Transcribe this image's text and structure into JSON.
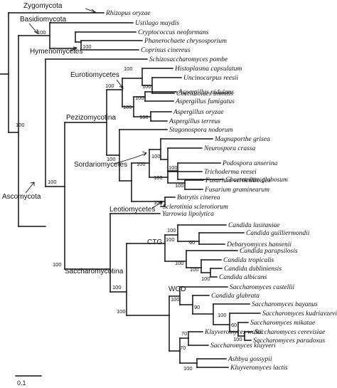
{
  "taxa": [
    "Rhizopus oryzae",
    "Ustilago maydis",
    "Cryptococcus neoformans",
    "Phanerochaete chrysosporium",
    "Coprinus cinereus",
    "Schizosaccharomyces pombe",
    "Histoplasma capsulatum",
    "Uncinocarpus reesii",
    "Coccidioides immitis",
    "Aspergillus nidulans",
    "Aspergillus fumigatus",
    "Aspergillus oryzae",
    "Aspergillus terreus",
    "Stagonospora nodorum",
    "Magnaporthe grisea",
    "Neurospora crassa",
    "Podospora anserina",
    "Chaetomium globosum",
    "Trichoderma reesei",
    "Fusarium verticillioides",
    "Fusarium graminearum",
    "Botrytis cinerea",
    "Sclerotinia sclerotiorum",
    "Yarrowia lipolytica",
    "Candida lusitaniae",
    "Candida guilliermondii",
    "Debaryomyces hansenii",
    "Candida parapsilosis",
    "Candida tropicalis",
    "Candida dubliniensis",
    "Candida albicans",
    "Saccharomyces castellii",
    "Candida glabrata",
    "Saccharomyces bayanus",
    "Saccharomyces kudriavzevii",
    "Saccharomyces mikatae",
    "Saccharomyces cerevisiae",
    "Saccharomyces paradoxus",
    "Kluyveromyces waltii",
    "Saccharomyces kluyveri",
    "Ashbya gossypii",
    "Kluyveromyces lactis"
  ],
  "clades": {
    "zygomycota": "Zygomycota",
    "basidiomycota": "Basidiomycota",
    "hymenomycetes": "Hymenomycetes",
    "eurotiomycetes": "Eurotiomycetes",
    "pezizomycotina": "Pezizomycotina",
    "sordariomycetes": "Sordariomycetes",
    "ascomycota": "Ascomycota",
    "leotiomycetes": "Leotiomycetes",
    "ctg": "CTG",
    "saccharomycotina": "Saccharomycotina",
    "wgd": "WGD"
  },
  "bootstrap": {
    "basidio": "100",
    "hymeno": "100",
    "ascomycota": "100",
    "pezizomycotina": "100",
    "eurotio": "100",
    "onygenales": "100",
    "uncin_cocci": "100",
    "aspergillus": "100",
    "asp_nid_fum": "100",
    "asp_ory_ter": "100",
    "sordario_leotio": "100",
    "sordario": "100",
    "sordariales": "100",
    "pod_cha": "100",
    "hypocreales": "100",
    "fusarium": "100",
    "leotio": "100",
    "saccharomycotina": "100",
    "saccharo_core": "100",
    "ctg": "100",
    "lus_gui_deb": "100",
    "gui_deb": "60",
    "par_tro_dub_alb": "100",
    "tro_dub_alb": "100",
    "dub_alb": "100",
    "wgd_kluyv": "100",
    "wgd": "100",
    "post_castellii": "90",
    "sensu_stricto": "100",
    "mik_cer_par": "60",
    "cer_par": "100",
    "kluyv_group": "70",
    "wal_klu": "70",
    "ash_lac": "100"
  },
  "scale_bar": "0.1"
}
